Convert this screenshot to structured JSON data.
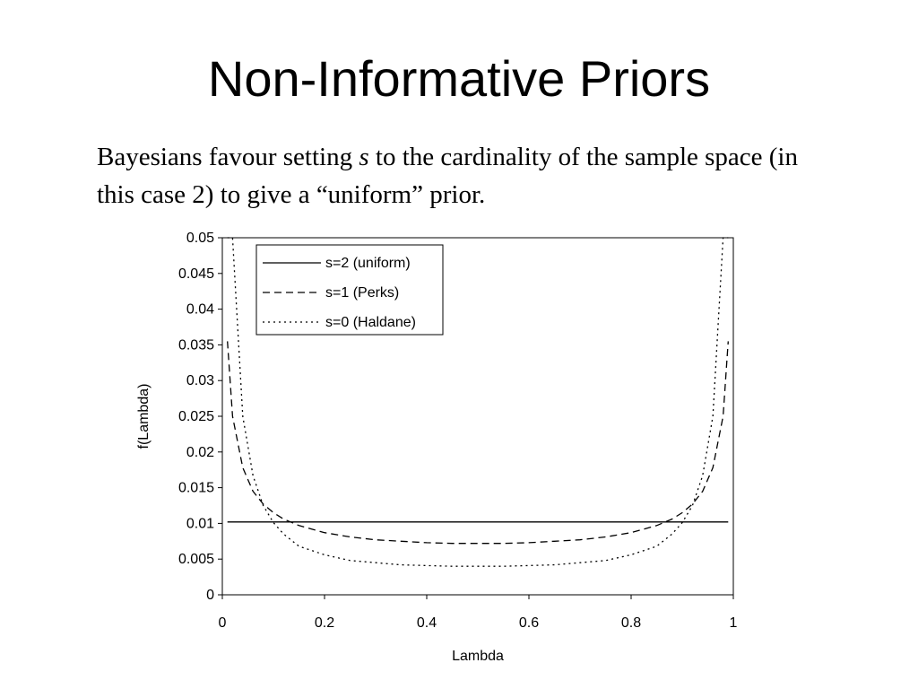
{
  "slide": {
    "title": "Non-Informative Priors",
    "text_before": "Bayesians favour setting ",
    "text_var": "s",
    "text_after": " to the cardinality of the sample space (in this case 2) to give a “uniform” prior."
  },
  "chart_data": {
    "type": "line",
    "title": "",
    "xlabel": "Lambda",
    "ylabel": "f(Lambda)",
    "xlim": [
      0,
      1
    ],
    "ylim": [
      0,
      0.05
    ],
    "xticks": [
      "0",
      "0.2",
      "0.4",
      "0.6",
      "0.8",
      "1"
    ],
    "yticks": [
      "0",
      "0.005",
      "0.01",
      "0.015",
      "0.02",
      "0.025",
      "0.03",
      "0.035",
      "0.04",
      "0.045",
      "0.05"
    ],
    "legend_position": "top-left",
    "grid": false,
    "x": [
      0.01,
      0.02,
      0.04,
      0.06,
      0.08,
      0.1,
      0.12,
      0.15,
      0.2,
      0.25,
      0.3,
      0.35,
      0.4,
      0.45,
      0.5,
      0.55,
      0.6,
      0.65,
      0.7,
      0.75,
      0.8,
      0.85,
      0.88,
      0.9,
      0.92,
      0.94,
      0.96,
      0.98,
      0.99
    ],
    "series": [
      {
        "name": "s=2 (uniform)",
        "style": "solid",
        "values": [
          0.0102,
          0.0102,
          0.0102,
          0.0102,
          0.0102,
          0.0102,
          0.0102,
          0.0102,
          0.0102,
          0.0102,
          0.0102,
          0.0102,
          0.0102,
          0.0102,
          0.0102,
          0.0102,
          0.0102,
          0.0102,
          0.0102,
          0.0102,
          0.0102,
          0.0102,
          0.0102,
          0.0102,
          0.0102,
          0.0102,
          0.0102,
          0.0102,
          0.0102
        ]
      },
      {
        "name": "s=1 (Perks)",
        "style": "dashed",
        "values": [
          0.0355,
          0.025,
          0.0178,
          0.0145,
          0.0127,
          0.0115,
          0.0106,
          0.0097,
          0.0087,
          0.0081,
          0.0077,
          0.0075,
          0.0073,
          0.0072,
          0.0072,
          0.0072,
          0.0073,
          0.0075,
          0.0077,
          0.0081,
          0.0087,
          0.0097,
          0.0106,
          0.0115,
          0.0127,
          0.0145,
          0.0178,
          0.025,
          0.0355
        ]
      },
      {
        "name": "s=0 (Haldane)",
        "style": "dotted",
        "values": [
          0.05,
          0.05,
          0.025,
          0.0167,
          0.0125,
          0.0101,
          0.0085,
          0.0068,
          0.0056,
          0.0048,
          0.0045,
          0.0042,
          0.0041,
          0.004,
          0.004,
          0.004,
          0.0041,
          0.0042,
          0.0045,
          0.0048,
          0.0056,
          0.0068,
          0.0085,
          0.0101,
          0.0125,
          0.0167,
          0.025,
          0.05,
          0.05
        ]
      }
    ]
  }
}
